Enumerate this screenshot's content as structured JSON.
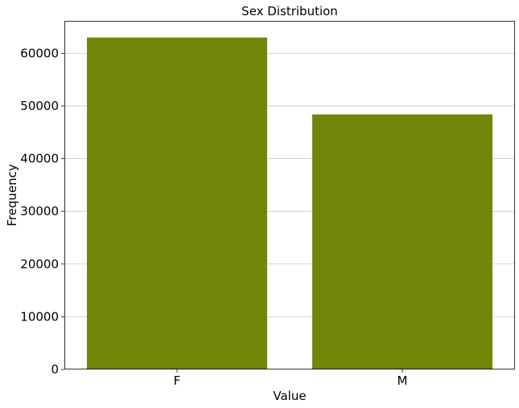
{
  "chart_data": {
    "type": "bar",
    "title": "Sex Distribution",
    "xlabel": "Value",
    "ylabel": "Frequency",
    "categories": [
      "F",
      "M"
    ],
    "values": [
      63000,
      48400
    ],
    "ylim": [
      0,
      66150
    ],
    "yticks": [
      0,
      10000,
      20000,
      30000,
      40000,
      50000,
      60000
    ],
    "ytick_labels": [
      "0",
      "10000",
      "20000",
      "30000",
      "40000",
      "50000",
      "60000"
    ],
    "grid": "y",
    "legend": "none",
    "bar_color": "#748609"
  }
}
